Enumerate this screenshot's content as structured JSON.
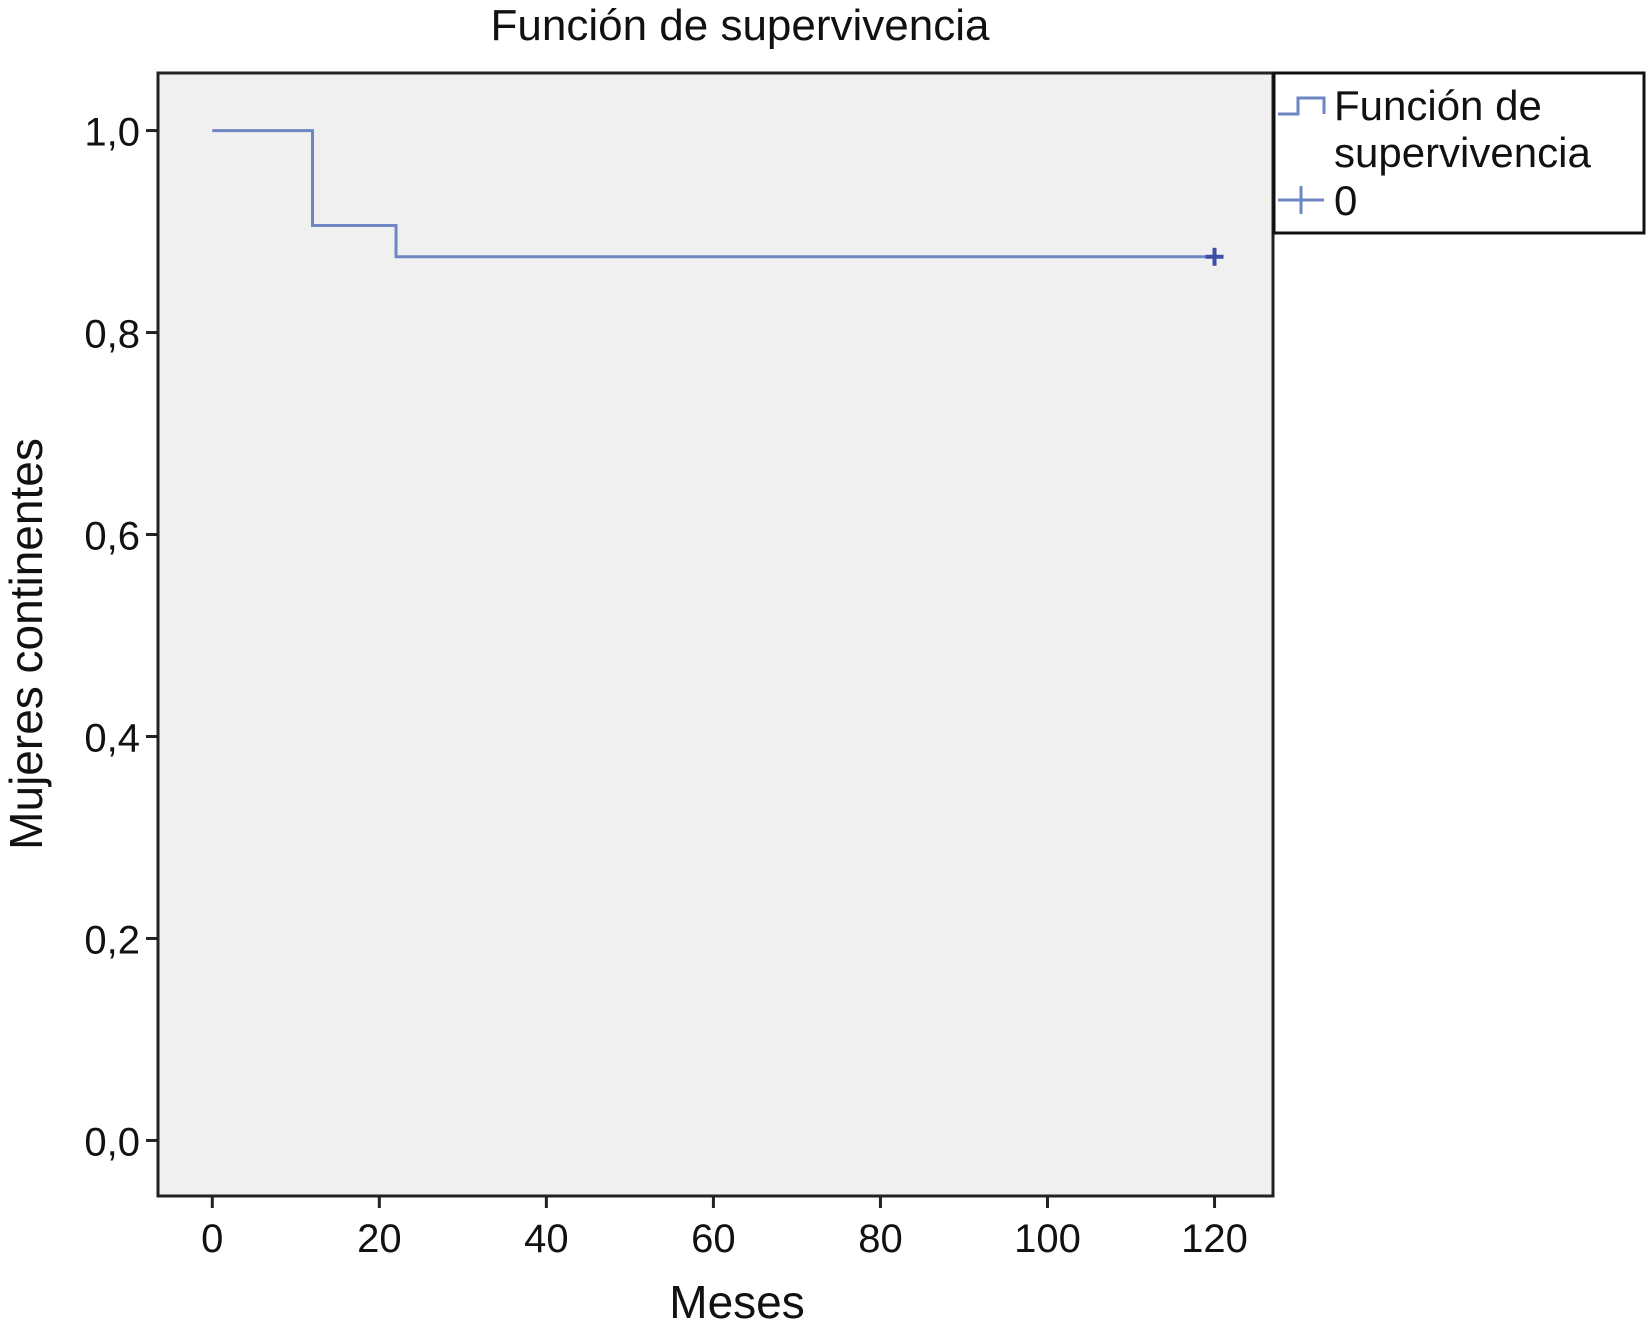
{
  "chart_data": {
    "type": "line",
    "step": true,
    "title": "Función de supervivencia",
    "xlabel": "Meses",
    "ylabel": "Mujeres continentes",
    "xlim": [
      -6.5,
      127
    ],
    "ylim": [
      -0.055,
      1.057
    ],
    "xticks": [
      0,
      20,
      40,
      60,
      80,
      100,
      120
    ],
    "xtick_labels": [
      "0",
      "20",
      "40",
      "60",
      "80",
      "100",
      "120"
    ],
    "yticks": [
      0,
      0.2,
      0.4,
      0.6,
      0.8,
      1.0
    ],
    "ytick_labels": [
      "0,0",
      "0,2",
      "0,4",
      "0,6",
      "0,8",
      "1,0"
    ],
    "grid": false,
    "legend_position": "top-right, outside plot",
    "legend": [
      {
        "label_lines": [
          "Función de",
          "supervivencia"
        ],
        "symbol": "step"
      },
      {
        "label_lines": [
          "0"
        ],
        "symbol": "censored"
      }
    ],
    "series": [
      {
        "x": [
          0,
          12,
          22,
          120
        ],
        "y": [
          1.0,
          0.906,
          0.875,
          0.875
        ],
        "censored": [
          {
            "x": 120,
            "y": 0.875
          }
        ]
      }
    ],
    "colors": {
      "line": "#6e86c2",
      "censor_mark": "#3c4fa6",
      "plot_background": "#f0f0f0",
      "frame": "#222222"
    }
  }
}
